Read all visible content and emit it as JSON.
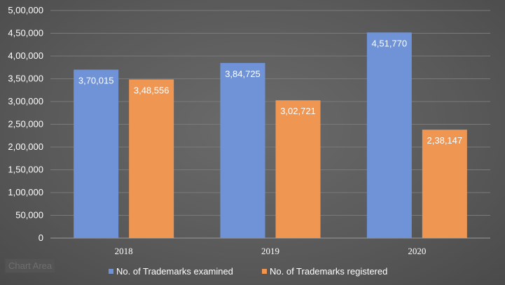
{
  "chart_area_tag": "Chart Area",
  "colors": {
    "examined": "#6f93d6",
    "registered": "#ef9653",
    "gridline": "#7a7a7a",
    "axis": "#9a9a9a"
  },
  "chart_data": {
    "type": "bar",
    "categories": [
      "2018",
      "2019",
      "2020"
    ],
    "series": [
      {
        "name": "No. of Trademarks examined",
        "values": [
          370015,
          384725,
          451770
        ],
        "labels": [
          "3,70,015",
          "3,84,725",
          "4,51,770"
        ]
      },
      {
        "name": "No. of Trademarks registered",
        "values": [
          348556,
          302721,
          238147
        ],
        "labels": [
          "3,48,556",
          "3,02,721",
          "2,38,147"
        ]
      }
    ],
    "ylim": [
      0,
      500000
    ],
    "yticks": [
      0,
      50000,
      100000,
      150000,
      200000,
      250000,
      300000,
      350000,
      400000,
      450000,
      500000
    ],
    "ytick_labels": [
      "0",
      "50,000",
      "1,00,000",
      "1,50,000",
      "2,00,000",
      "2,50,000",
      "3,00,000",
      "3,50,000",
      "4,00,000",
      "4,50,000",
      "5,00,000"
    ],
    "grid": true,
    "legend": "bottom",
    "title": "",
    "xlabel": "",
    "ylabel": ""
  }
}
